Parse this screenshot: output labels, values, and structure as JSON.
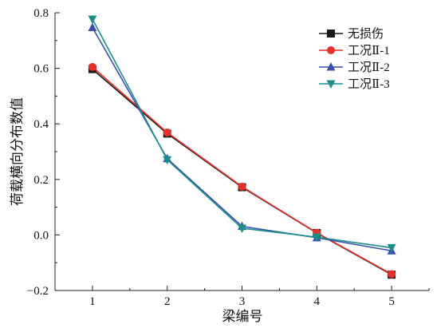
{
  "chart_data": {
    "type": "line",
    "xlabel": "梁编号",
    "ylabel": "荷载横向分布数值",
    "xlim": [
      0.5,
      5.5
    ],
    "ylim": [
      -0.2,
      0.8
    ],
    "xticks": [
      1,
      2,
      3,
      4,
      5
    ],
    "xtick_labels": [
      "1",
      "2",
      "3",
      "4",
      "5"
    ],
    "yticks": [
      -0.2,
      0.0,
      0.2,
      0.4,
      0.6,
      0.8
    ],
    "ytick_labels": [
      "−0.2",
      "0.0",
      "0.2",
      "0.4",
      "0.6",
      "0.8"
    ],
    "grid": false,
    "legend_position": "top-right",
    "series": [
      {
        "name": "无损伤",
        "marker": "square",
        "color": "#1a1a1a",
        "x": [
          1,
          2,
          3,
          4,
          5
        ],
        "values": [
          0.597,
          0.365,
          0.172,
          0.007,
          -0.143
        ]
      },
      {
        "name": "工况Ⅱ-1",
        "marker": "circle",
        "color": "#e8302a",
        "x": [
          1,
          2,
          3,
          4,
          5
        ],
        "values": [
          0.605,
          0.369,
          0.174,
          0.008,
          -0.141
        ]
      },
      {
        "name": "工况Ⅱ-2",
        "marker": "triangle-up",
        "color": "#3a4fb0",
        "x": [
          1,
          2,
          3,
          4,
          5
        ],
        "values": [
          0.747,
          0.275,
          0.031,
          -0.01,
          -0.057
        ]
      },
      {
        "name": "工况Ⅱ-3",
        "marker": "triangle-down",
        "color": "#1a8f8a",
        "x": [
          1,
          2,
          3,
          4,
          5
        ],
        "values": [
          0.777,
          0.271,
          0.024,
          -0.008,
          -0.046
        ]
      }
    ]
  }
}
